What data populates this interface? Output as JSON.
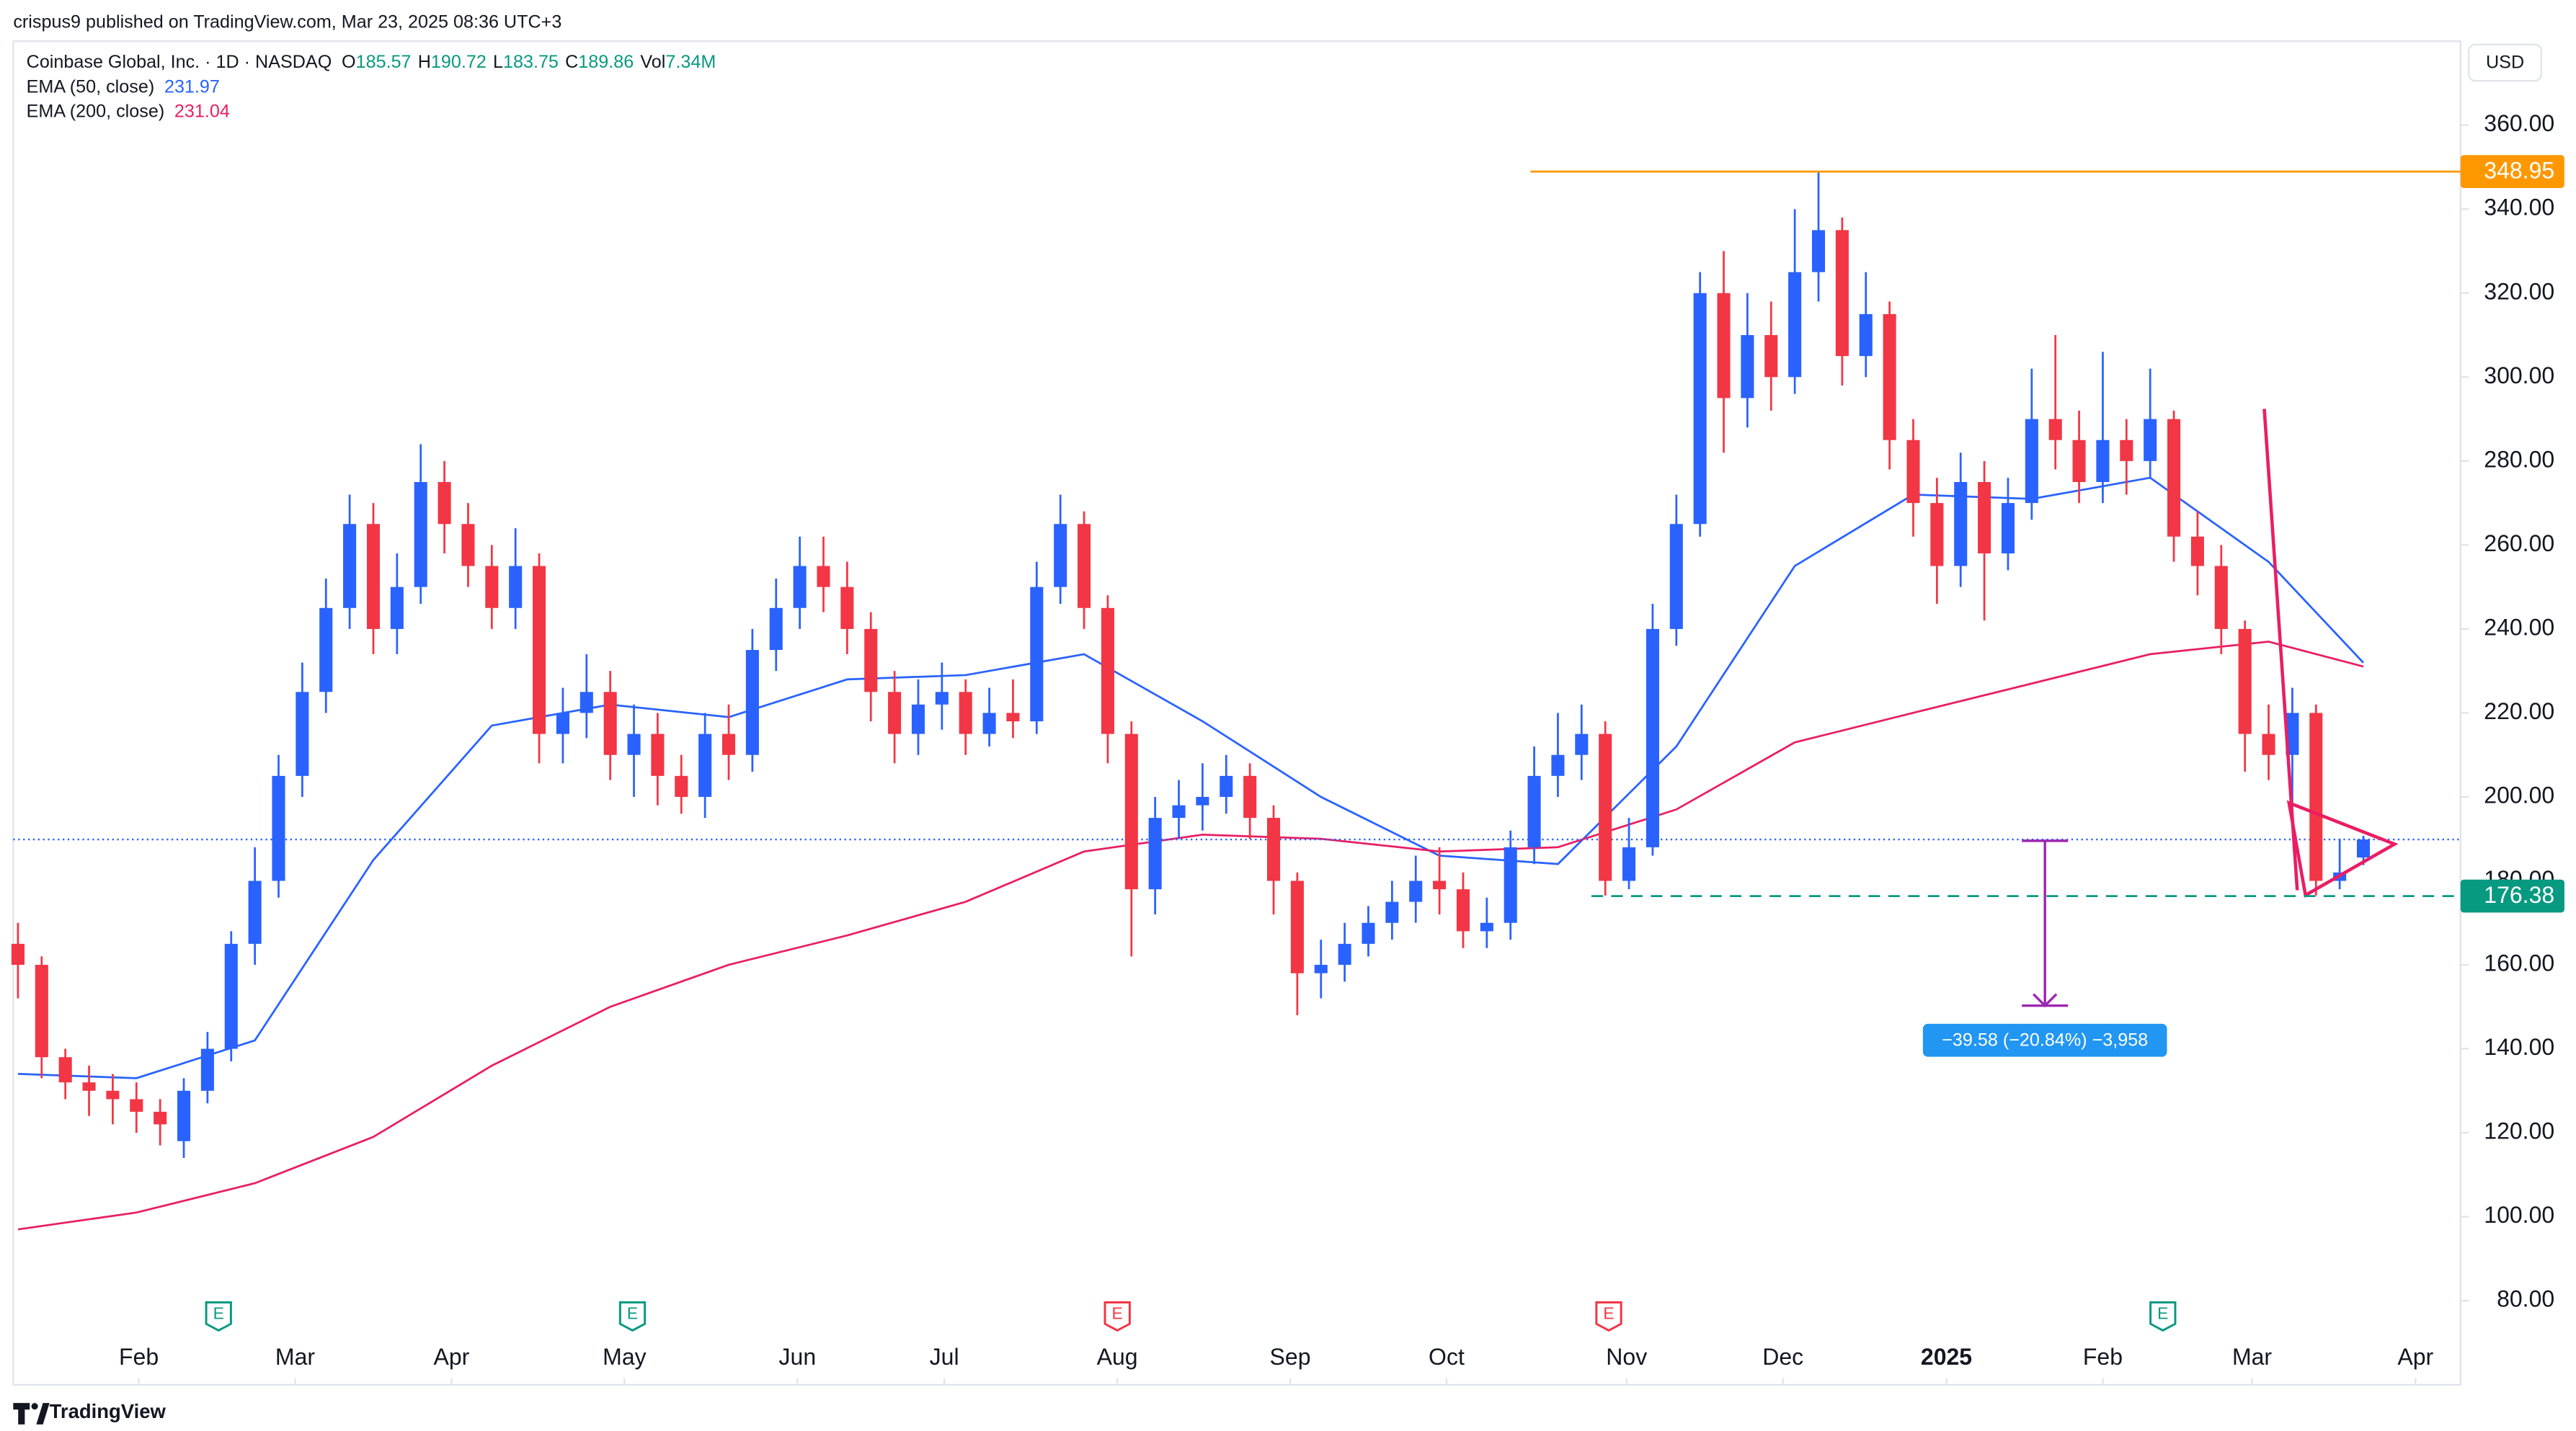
{
  "header": {
    "author_line": "crispus9 published on TradingView.com, Mar 23, 2025 08:36 UTC+3",
    "symbol": "Coinbase Global, Inc. · 1D · NASDAQ",
    "ohlc_letters": [
      "O",
      "H",
      "L",
      "C",
      "Vol"
    ],
    "volume": "7.34M",
    "currency": "USD"
  },
  "footer": {
    "brand": "TradingView"
  },
  "chart_data": {
    "type": "candlestick",
    "up_color": "#2962ff",
    "down_color": "#f23645",
    "candles": {
      "open": [
        165,
        160,
        138,
        132,
        130,
        128,
        125,
        118,
        130,
        140,
        165,
        180,
        205,
        225,
        245,
        265,
        240,
        250,
        275,
        265,
        255,
        245,
        255,
        215,
        220,
        225,
        210,
        215,
        205,
        200,
        215,
        210,
        235,
        245,
        255,
        250,
        240,
        225,
        215,
        222,
        225,
        215,
        220,
        218,
        250,
        265,
        245,
        215,
        178,
        195,
        198,
        200,
        205,
        195,
        180,
        158,
        160,
        165,
        170,
        175,
        180,
        178,
        168,
        170,
        188,
        205,
        210,
        215,
        180,
        188,
        240,
        265,
        320,
        295,
        310,
        300,
        325,
        335,
        305,
        315,
        285,
        270,
        255,
        275,
        258,
        270,
        290,
        285,
        275,
        285,
        280,
        290,
        262,
        255,
        240,
        215,
        210,
        220,
        180,
        185.57
      ],
      "high": [
        170,
        162,
        140,
        136,
        134,
        132,
        128,
        133,
        144,
        168,
        188,
        210,
        232,
        252,
        272,
        270,
        258,
        284,
        280,
        270,
        260,
        264,
        258,
        226,
        234,
        230,
        222,
        220,
        210,
        220,
        222,
        240,
        252,
        262,
        262,
        256,
        244,
        230,
        228,
        232,
        228,
        226,
        228,
        256,
        272,
        268,
        248,
        218,
        200,
        204,
        208,
        210,
        208,
        198,
        182,
        166,
        170,
        174,
        180,
        186,
        188,
        182,
        176,
        192,
        212,
        220,
        222,
        218,
        195,
        246,
        272,
        325,
        330,
        320,
        318,
        340,
        348.95,
        338,
        325,
        318,
        290,
        276,
        282,
        280,
        276,
        302,
        310,
        292,
        306,
        290,
        302,
        292,
        268,
        260,
        242,
        222,
        226,
        222,
        190,
        190.72
      ],
      "low": [
        152,
        133,
        128,
        124,
        122,
        120,
        117,
        114,
        127,
        137,
        160,
        176,
        200,
        220,
        240,
        234,
        234,
        246,
        258,
        250,
        240,
        240,
        208,
        208,
        214,
        204,
        200,
        198,
        196,
        195,
        204,
        206,
        230,
        240,
        244,
        234,
        218,
        208,
        210,
        216,
        210,
        212,
        214,
        215,
        246,
        240,
        208,
        162,
        172,
        190,
        192,
        196,
        190,
        172,
        148,
        152,
        156,
        162,
        166,
        170,
        172,
        164,
        164,
        166,
        184,
        200,
        204,
        176.5,
        178,
        186,
        236,
        262,
        282,
        288,
        292,
        296,
        318,
        298,
        300,
        278,
        262,
        246,
        250,
        242,
        254,
        266,
        278,
        270,
        270,
        272,
        276,
        256,
        248,
        234,
        206,
        204,
        196,
        176.5,
        178,
        183.75
      ],
      "close": [
        160,
        138,
        132,
        130,
        128,
        125,
        122,
        130,
        140,
        165,
        180,
        205,
        225,
        245,
        265,
        240,
        250,
        275,
        265,
        255,
        245,
        255,
        215,
        220,
        225,
        210,
        215,
        205,
        200,
        215,
        210,
        235,
        245,
        255,
        250,
        240,
        225,
        215,
        222,
        225,
        215,
        220,
        218,
        250,
        265,
        245,
        215,
        178,
        195,
        198,
        200,
        205,
        195,
        180,
        158,
        160,
        165,
        170,
        175,
        180,
        178,
        168,
        170,
        188,
        205,
        210,
        215,
        180,
        188,
        240,
        265,
        320,
        295,
        310,
        300,
        325,
        335,
        305,
        315,
        285,
        270,
        255,
        275,
        258,
        270,
        290,
        285,
        275,
        285,
        280,
        290,
        262,
        255,
        240,
        215,
        210,
        220,
        180,
        182,
        189.86
      ]
    },
    "overlays": [
      {
        "name": "EMA (50, close)",
        "color": "#2962ff",
        "x": [
          0,
          5,
          10,
          15,
          20,
          25,
          30,
          35,
          40,
          45,
          50,
          55,
          60,
          65,
          70,
          75,
          80,
          85,
          90,
          95,
          99
        ],
        "values": [
          134,
          133,
          142,
          185,
          217,
          222,
          219,
          228,
          229,
          234,
          218,
          200,
          186,
          184,
          212,
          255,
          272,
          271,
          276,
          256,
          231.97
        ]
      },
      {
        "name": "EMA (200, close)",
        "color": "#e91e63",
        "x": [
          0,
          5,
          10,
          15,
          20,
          25,
          30,
          35,
          40,
          45,
          50,
          55,
          60,
          65,
          70,
          75,
          80,
          85,
          90,
          95,
          99
        ],
        "values": [
          97,
          101,
          108,
          119,
          136,
          150,
          160,
          167,
          175,
          187,
          191,
          190,
          187,
          188,
          197,
          213,
          220,
          227,
          234,
          237,
          231.04
        ]
      }
    ],
    "levels": [
      {
        "value": 348.95,
        "color": "#ff9800"
      },
      {
        "value": 176.38,
        "color": "#089981"
      }
    ],
    "measure_label": "−39.58 (−20.84%) −3,958",
    "earnings_markers": [
      "E",
      "E",
      "E",
      "E",
      "E"
    ],
    "xlim": [
      -0.2,
      103.1
    ],
    "xticks": [
      {
        "value": 5.1,
        "label": "Feb"
      },
      {
        "value": 11.7,
        "label": "Mar"
      },
      {
        "value": 18.3,
        "label": "Apr"
      },
      {
        "value": 25.6,
        "label": "May"
      },
      {
        "value": 32.9,
        "label": "Jun"
      },
      {
        "value": 39.1,
        "label": "Jul"
      },
      {
        "value": 46.4,
        "label": "Aug"
      },
      {
        "value": 53.7,
        "label": "Sep"
      },
      {
        "value": 60.3,
        "label": "Oct"
      },
      {
        "value": 67.9,
        "label": "Nov"
      },
      {
        "value": 74.5,
        "label": "Dec"
      },
      {
        "value": 81.4,
        "label": "2025"
      },
      {
        "value": 88,
        "label": "Feb"
      },
      {
        "value": 94.3,
        "label": "Mar"
      },
      {
        "value": 101.2,
        "label": "Apr"
      }
    ],
    "ylim": [
      73.7,
      380
    ],
    "yticks": [
      {
        "value": 80,
        "label": "80.00"
      },
      {
        "value": 100,
        "label": "100.00"
      },
      {
        "value": 120,
        "label": "120.00"
      },
      {
        "value": 140,
        "label": "140.00"
      },
      {
        "value": 160,
        "label": "160.00"
      },
      {
        "value": 180,
        "label": "180.00"
      },
      {
        "value": 200,
        "label": "200.00"
      },
      {
        "value": 220,
        "label": "220.00"
      },
      {
        "value": 240,
        "label": "240.00"
      },
      {
        "value": 260,
        "label": "260.00"
      },
      {
        "value": 280,
        "label": "280.00"
      },
      {
        "value": 300,
        "label": "300.00"
      },
      {
        "value": 320,
        "label": "320.00"
      },
      {
        "value": 340,
        "label": "340.00"
      },
      {
        "value": 360,
        "label": "360.00"
      }
    ]
  }
}
